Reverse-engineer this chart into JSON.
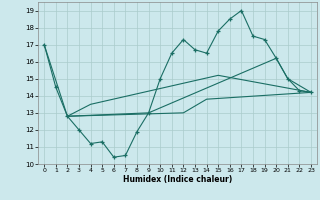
{
  "xlabel": "Humidex (Indice chaleur)",
  "background_color": "#cce8ec",
  "grid_color": "#aacccc",
  "line_color": "#1a6e64",
  "xlim": [
    -0.5,
    23.5
  ],
  "ylim": [
    10,
    19.5
  ],
  "yticks": [
    10,
    11,
    12,
    13,
    14,
    15,
    16,
    17,
    18,
    19
  ],
  "xticks": [
    0,
    1,
    2,
    3,
    4,
    5,
    6,
    7,
    8,
    9,
    10,
    11,
    12,
    13,
    14,
    15,
    16,
    17,
    18,
    19,
    20,
    21,
    22,
    23
  ],
  "line1_x": [
    0,
    1,
    2,
    3,
    4,
    5,
    6,
    7,
    8,
    9,
    10,
    11,
    12,
    13,
    14,
    15,
    16,
    17,
    18,
    19,
    20,
    21,
    22,
    23
  ],
  "line1_y": [
    17.0,
    14.5,
    12.8,
    12.0,
    11.2,
    11.3,
    10.4,
    10.5,
    11.9,
    13.0,
    15.0,
    16.5,
    17.3,
    16.7,
    16.5,
    17.8,
    18.5,
    19.0,
    17.5,
    17.3,
    16.2,
    15.0,
    14.3,
    14.2
  ],
  "line2_x": [
    2,
    12,
    14,
    23
  ],
  "line2_y": [
    12.8,
    13.0,
    13.8,
    14.2
  ],
  "line3_x": [
    2,
    4,
    15,
    23
  ],
  "line3_y": [
    12.8,
    13.5,
    15.2,
    14.2
  ],
  "line4_x": [
    0,
    2,
    9,
    20,
    21,
    23
  ],
  "line4_y": [
    17.0,
    12.8,
    13.0,
    16.2,
    15.0,
    14.2
  ]
}
